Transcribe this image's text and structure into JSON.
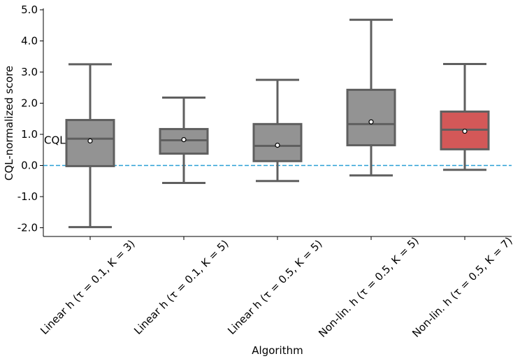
{
  "chart_data": {
    "type": "box",
    "y_label": "CQL-normalized score",
    "x_label": "Algorithm",
    "categories": [
      "Linear h (τ = 0.1, K = 3)",
      "Linear h (τ = 0.1, K = 5)",
      "Linear h (τ = 0.5, K = 5)",
      "Non-lin. h (τ = 0.5, K = 5)",
      "Non-lin. h (τ = 0.5, K = 7)"
    ],
    "min": [
      -1.98,
      -0.56,
      -0.5,
      -0.32,
      -0.14
    ],
    "q1": [
      -0.02,
      0.38,
      0.14,
      0.65,
      0.52
    ],
    "median": [
      0.86,
      0.81,
      0.63,
      1.33,
      1.15
    ],
    "q3": [
      1.46,
      1.17,
      1.33,
      2.43,
      1.73
    ],
    "max": [
      3.25,
      2.18,
      2.75,
      4.68,
      3.26
    ],
    "mean": [
      0.79,
      0.83,
      0.65,
      1.4,
      1.1
    ],
    "colors": [
      "#939393",
      "#939393",
      "#939393",
      "#939393",
      "#d35858"
    ],
    "reference_line": {
      "value": 0,
      "label": "CQL",
      "color": "#2a9fd6"
    },
    "ylim": [
      -2.28,
      5.0
    ],
    "yticks": [
      {
        "value": -2,
        "label": "-2.0"
      },
      {
        "value": -1,
        "label": "-1.0"
      },
      {
        "value": 0,
        "label": "0.0"
      },
      {
        "value": 1,
        "label": "1.0"
      },
      {
        "value": 2,
        "label": "2.0"
      },
      {
        "value": 3,
        "label": "3.0"
      },
      {
        "value": 4,
        "label": "4.0"
      },
      {
        "value": 5,
        "label": "5.0"
      }
    ]
  }
}
